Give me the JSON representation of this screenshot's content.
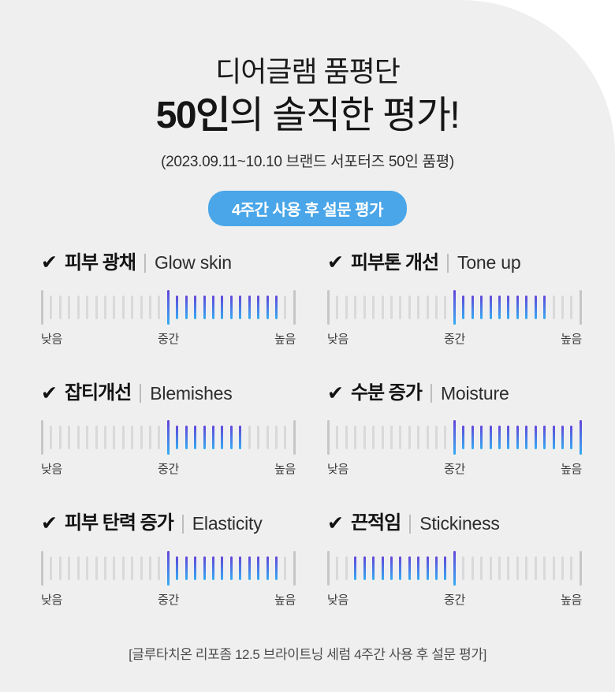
{
  "header": {
    "title_line1": "디어글램 품평단",
    "title_line2_strong": "50인",
    "title_line2_rest": "의 솔직한 평가!",
    "date_note": "(2023.09.11~10.10 브랜드 서포터즈 50인 품평)",
    "badge_label": "4주간 사용 후 설문 평가"
  },
  "icons": {
    "check": "✔"
  },
  "colors": {
    "panel_gray": "#EFEFEF",
    "badge_blue": "#4AA6E8",
    "tick_gray": "#D9D9DB",
    "marker_gray": "#C6C6C8",
    "tick_gradient_top": "#6244DA",
    "tick_gradient_bottom": "#35ADF2"
  },
  "chart_data": {
    "type": "bar",
    "note": "Six linear tick-mark rating scales; highlighted gradient range shows survey result span. 29 ticks per scale, tall markers at indices 0 (낮음), 14 (중간), 28 (높음).",
    "axis_labels": [
      "낮음",
      "중간",
      "높음"
    ],
    "scales": [
      {
        "korean_label": "피부 광채",
        "english_label": "Glow skin",
        "axis_labels": [
          "낮음",
          "중간",
          "높음"
        ],
        "tick_count": 29,
        "marker_indices": [
          0,
          14,
          28
        ],
        "highlight_start_index": 14,
        "highlight_end_index": 26,
        "highlight_range_pct": [
          50,
          93
        ]
      },
      {
        "korean_label": "피부톤 개선",
        "english_label": "Tone up",
        "axis_labels": [
          "낮음",
          "중간",
          "높음"
        ],
        "tick_count": 29,
        "marker_indices": [
          0,
          14,
          28
        ],
        "highlight_start_index": 14,
        "highlight_end_index": 24,
        "highlight_range_pct": [
          50,
          86
        ]
      },
      {
        "korean_label": "잡티개선",
        "english_label": "Blemishes",
        "axis_labels": [
          "낮음",
          "중간",
          "높음"
        ],
        "tick_count": 29,
        "marker_indices": [
          0,
          14,
          28
        ],
        "highlight_start_index": 14,
        "highlight_end_index": 22,
        "highlight_range_pct": [
          50,
          79
        ]
      },
      {
        "korean_label": "수분 증가",
        "english_label": "Moisture",
        "axis_labels": [
          "낮음",
          "중간",
          "높음"
        ],
        "tick_count": 29,
        "marker_indices": [
          0,
          14,
          28
        ],
        "highlight_start_index": 14,
        "highlight_end_index": 28,
        "highlight_range_pct": [
          50,
          100
        ]
      },
      {
        "korean_label": "피부 탄력 증가",
        "english_label": "Elasticity",
        "axis_labels": [
          "낮음",
          "중간",
          "높음"
        ],
        "tick_count": 29,
        "marker_indices": [
          0,
          14,
          28
        ],
        "highlight_start_index": 14,
        "highlight_end_index": 26,
        "highlight_range_pct": [
          50,
          93
        ]
      },
      {
        "korean_label": "끈적임",
        "english_label": "Stickiness",
        "axis_labels": [
          "낮음",
          "중간",
          "높음"
        ],
        "tick_count": 29,
        "marker_indices": [
          0,
          14,
          28
        ],
        "highlight_start_index": 3,
        "highlight_end_index": 14,
        "highlight_range_pct": [
          11,
          50
        ]
      }
    ]
  },
  "footer": {
    "note": "[글루타치온 리포좀 12.5 브라이트닝 세럼 4주간 사용 후 설문 평가]"
  }
}
